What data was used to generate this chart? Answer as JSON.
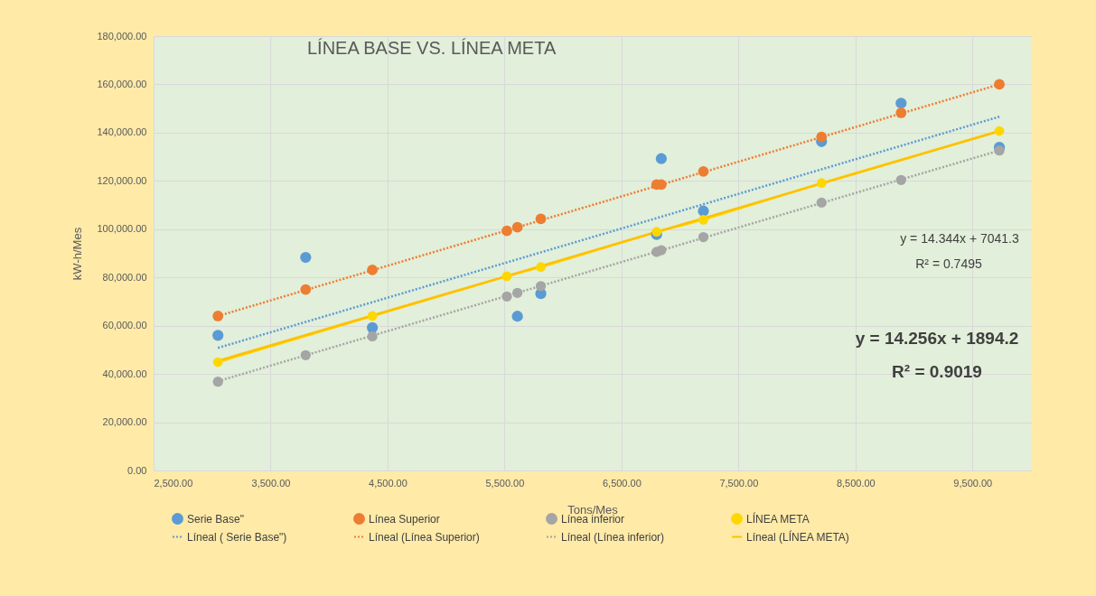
{
  "chart_data": {
    "type": "scatter",
    "title": "LÍNEA BASE VS. LÍNEA META",
    "xlabel": "Tons/Mes",
    "ylabel": "kW-h/Mes",
    "x": [
      3050,
      3800,
      4370,
      5520,
      5610,
      5810,
      6800,
      6840,
      7200,
      8210,
      8890,
      9730
    ],
    "series": [
      {
        "name": "Serie Base\"",
        "type": "scatter",
        "marker": "circle",
        "color": "#5b9bd5",
        "values": [
          56000,
          88300,
          59200,
          null,
          63900,
          73300,
          97800,
          129200,
          107500,
          136300,
          152200,
          133900
        ]
      },
      {
        "name": "Línea Superior",
        "type": "scatter",
        "marker": "circle",
        "color": "#ed7d31",
        "values": [
          64000,
          75000,
          83100,
          99300,
          100800,
          104300,
          118500,
          118500,
          123900,
          138200,
          148200,
          160000
        ]
      },
      {
        "name": "Línea inferior",
        "type": "scatter",
        "marker": "circle",
        "color": "#a5a5a5",
        "values": [
          36800,
          47800,
          55600,
          72100,
          73600,
          76400,
          90600,
          91300,
          96700,
          111000,
          120400,
          132600
        ]
      },
      {
        "name": "LÍNEA META",
        "type": "line",
        "marker": "circle",
        "line_style": "solid",
        "color": "#ffd700",
        "x": [
          3050,
          4370,
          5520,
          5810,
          6800,
          7200,
          8210,
          9730
        ],
        "values": [
          44900,
          64000,
          80500,
          84300,
          98900,
          103900,
          119100,
          140700
        ]
      },
      {
        "name": "Líneal ( Serie Base\")",
        "type": "line",
        "marker": "none",
        "line_style": "dotted",
        "color": "#5b9bd5",
        "x": [
          3050,
          9730
        ],
        "values": [
          50800,
          146600
        ]
      },
      {
        "name": "Líneal (Línea Superior)",
        "type": "line",
        "marker": "none",
        "line_style": "dotted",
        "color": "#ed7d31",
        "x": [
          3050,
          9730
        ],
        "values": [
          64000,
          160000
        ]
      },
      {
        "name": "Líneal (Línea inferior)",
        "type": "line",
        "marker": "none",
        "line_style": "dotted",
        "color": "#a5a5a5",
        "x": [
          3050,
          9730
        ],
        "values": [
          37000,
          132600
        ]
      },
      {
        "name": "Líneal (LÍNEA META)",
        "type": "line",
        "marker": "none",
        "line_style": "solid",
        "color": "#ffc000",
        "x": [
          3050,
          9730
        ],
        "values": [
          45400,
          140600
        ]
      }
    ],
    "xlim": [
      2500,
      10000
    ],
    "xticks": [
      {
        "value": 2500,
        "label": "2,500.00"
      },
      {
        "value": 3500,
        "label": "3,500.00"
      },
      {
        "value": 4500,
        "label": "4,500.00"
      },
      {
        "value": 5500,
        "label": "5,500.00"
      },
      {
        "value": 6500,
        "label": "6,500.00"
      },
      {
        "value": 7500,
        "label": "7,500.00"
      },
      {
        "value": 8500,
        "label": "8,500.00"
      },
      {
        "value": 9500,
        "label": "9,500.00"
      }
    ],
    "ylim": [
      0,
      180000
    ],
    "yticks": [
      {
        "value": 0,
        "label": "0.00"
      },
      {
        "value": 20000,
        "label": "20,000.00"
      },
      {
        "value": 40000,
        "label": "40,000.00"
      },
      {
        "value": 60000,
        "label": "60,000.00"
      },
      {
        "value": 80000,
        "label": "80,000.00"
      },
      {
        "value": 100000,
        "label": "100,000.00"
      },
      {
        "value": 120000,
        "label": "120,000.00"
      },
      {
        "value": 140000,
        "label": "140,000.00"
      },
      {
        "value": 160000,
        "label": "160,000.00"
      },
      {
        "value": 180000,
        "label": "180,000.00"
      }
    ],
    "annotations": [
      "y = 14.344x + 7041.3",
      "R² = 0.7495",
      "y = 14.256x + 1894.2",
      "R² = 0.9019"
    ],
    "grid": true,
    "legend": "bottom"
  }
}
